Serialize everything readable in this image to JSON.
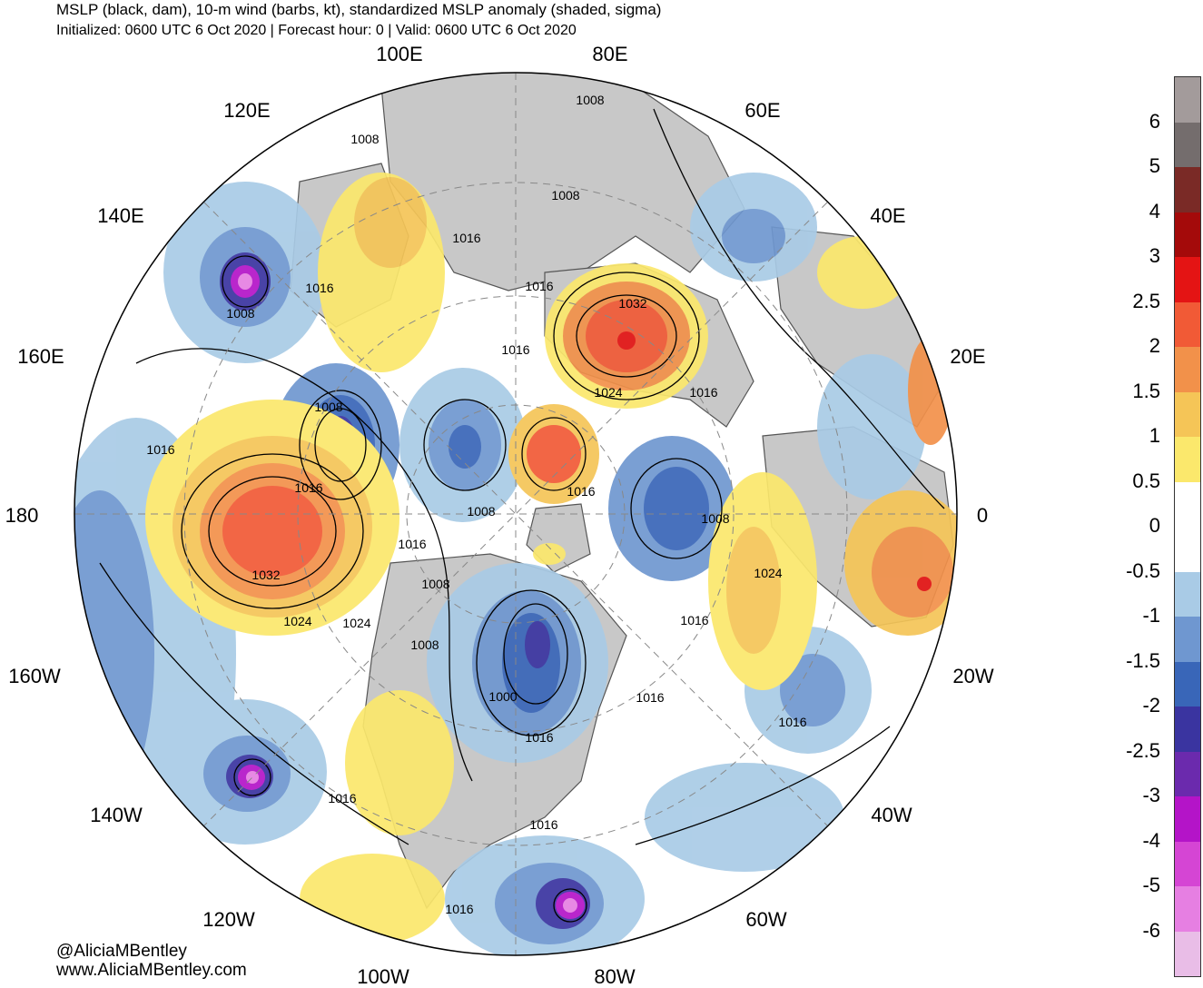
{
  "header": {
    "title": "MSLP (black, dam), 10-m wind (barbs, kt), standardized MSLP anomaly (shaded, sigma)",
    "subtitle": "Initialized: 0600 UTC 6 Oct 2020 | Forecast hour: 0 | Valid: 0600 UTC 6 Oct 2020"
  },
  "map": {
    "projection": "north-polar-stereographic",
    "longitude_labels": [
      "100E",
      "80E",
      "120E",
      "60E",
      "140E",
      "40E",
      "160E",
      "20E",
      "180",
      "0",
      "160W",
      "20W",
      "140W",
      "40W",
      "120W",
      "60W",
      "100W",
      "80W"
    ],
    "isobar_labels": [
      "1008",
      "1008",
      "1008",
      "1016",
      "1016",
      "1016",
      "1008",
      "1032",
      "1024",
      "1016",
      "1016",
      "1008",
      "1016",
      "1008",
      "1016",
      "1032",
      "1024",
      "1024",
      "1008",
      "1016",
      "1008",
      "1024",
      "1016",
      "1016",
      "1000",
      "1016",
      "1016",
      "1016",
      "1016",
      "1016",
      "1008",
      "1016"
    ],
    "colors": {
      "land": "#c8c8c8",
      "ocean_neutral": "#ffffff",
      "coast": "#555555",
      "isobar": "#000000",
      "grid": "#888888"
    }
  },
  "colorbar": {
    "labels": [
      "6",
      "5",
      "4",
      "3",
      "2.5",
      "2",
      "1.5",
      "1",
      "0.5",
      "0",
      "-0.5",
      "-1",
      "-1.5",
      "-2",
      "-2.5",
      "-3",
      "-4",
      "-5",
      "-6"
    ],
    "colors": [
      "#a39b9b",
      "#746d6d",
      "#7a2a26",
      "#a40a0a",
      "#e41414",
      "#f15a36",
      "#f2914a",
      "#f5c557",
      "#fbe86c",
      "#ffffff",
      "#ffffff",
      "#a9cbe6",
      "#6f97d0",
      "#3966b8",
      "#3a34a0",
      "#6b2aad",
      "#b414c8",
      "#d545d4",
      "#e67fe2",
      "#e9bde7"
    ]
  },
  "credits": {
    "twitter": "@AliciaMBentley",
    "website": "www.AliciaMBentley.com"
  }
}
